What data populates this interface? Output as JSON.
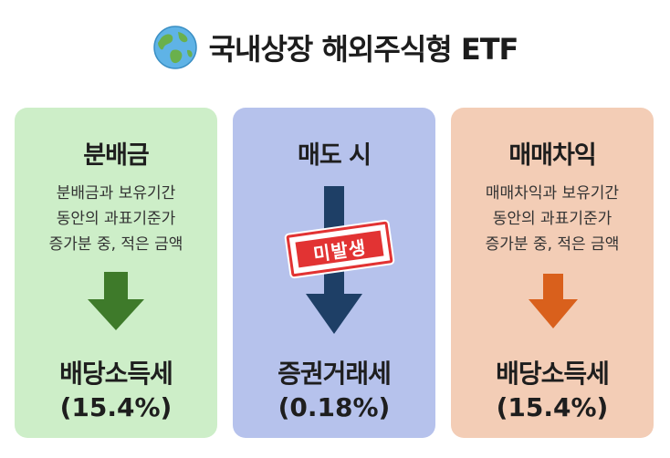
{
  "header": {
    "title": "국내상장 해외주식형 ETF",
    "icon": "globe-icon"
  },
  "cards": [
    {
      "heading": "분배금",
      "desc": [
        "분배금과 보유기간",
        "동안의 과표기준가",
        "증가분 중, 적은 금액"
      ],
      "result": "배당소득세",
      "rate": "(15.4%)",
      "color": "#cdeec8",
      "arrow_color": "#3e7a2a"
    },
    {
      "heading": "매도 시",
      "stamp": "미발생",
      "result": "증권거래세",
      "rate": "(0.18%)",
      "color": "#b6c2ec",
      "arrow_color": "#1e3f66"
    },
    {
      "heading": "매매차익",
      "desc": [
        "매매차익과 보유기간",
        "동안의 과표기준가",
        "증가분 중, 적은 금액"
      ],
      "result": "배당소득세",
      "rate": "(15.4%)",
      "color": "#f3cdb6",
      "arrow_color": "#d9601c"
    }
  ]
}
